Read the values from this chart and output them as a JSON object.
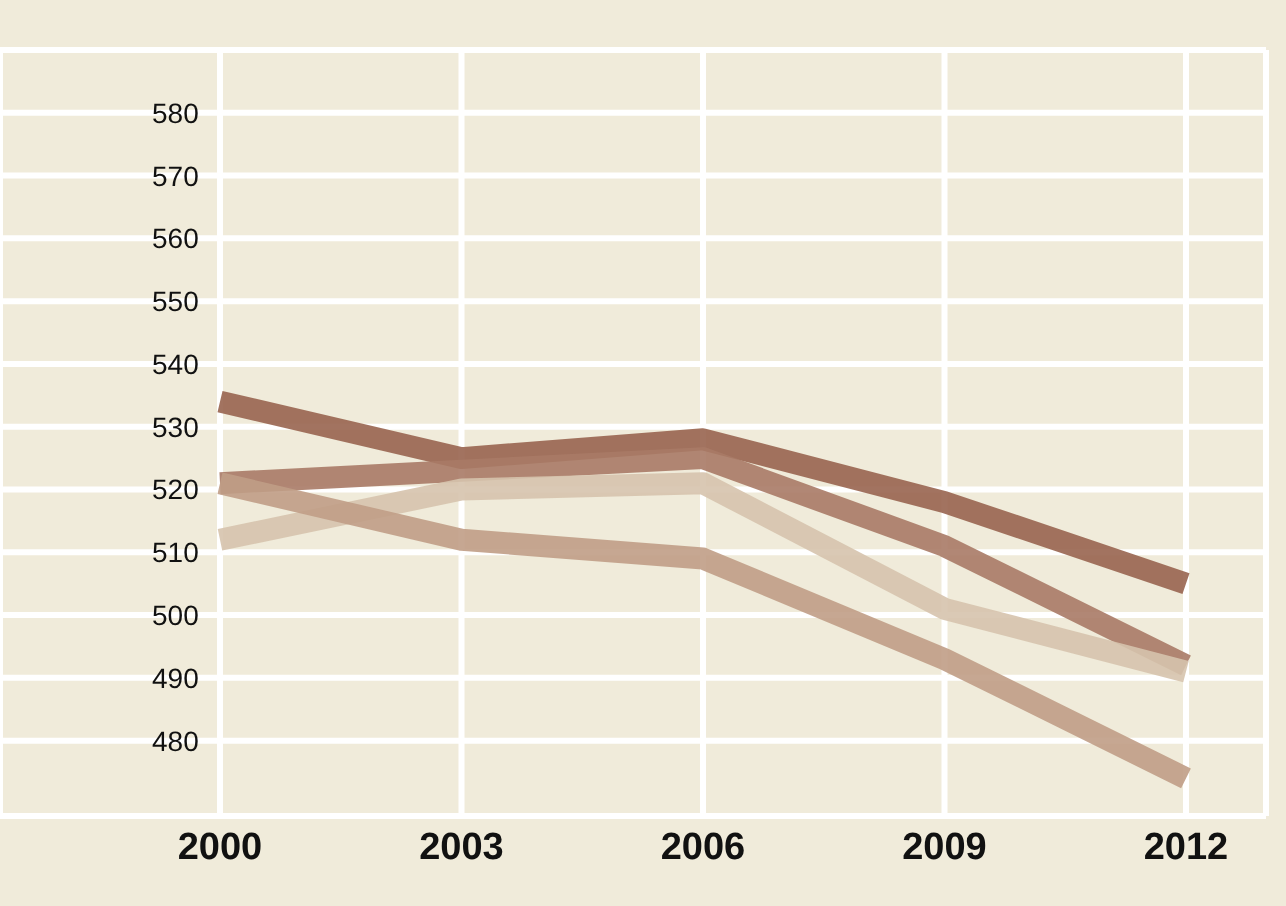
{
  "chart_data": {
    "type": "line",
    "categories": [
      "2000",
      "2003",
      "2006",
      "2009",
      "2012"
    ],
    "series": [
      {
        "color": "#98644f",
        "values": [
          534,
          525,
          528,
          518,
          505
        ]
      },
      {
        "color": "#a87a66",
        "values": [
          521,
          523,
          525,
          511,
          492
        ]
      },
      {
        "color": "#d6c3ad",
        "values": [
          512,
          520,
          521,
          501,
          491
        ]
      },
      {
        "color": "#c09d86",
        "values": [
          521,
          512,
          509,
          493,
          474
        ]
      }
    ],
    "ylim": [
      468,
      590
    ],
    "yticks": [
      480,
      490,
      500,
      510,
      520,
      530,
      540,
      550,
      560,
      570,
      580
    ],
    "grid": true,
    "marker": "none",
    "line_style": "solid",
    "legend": false
  }
}
